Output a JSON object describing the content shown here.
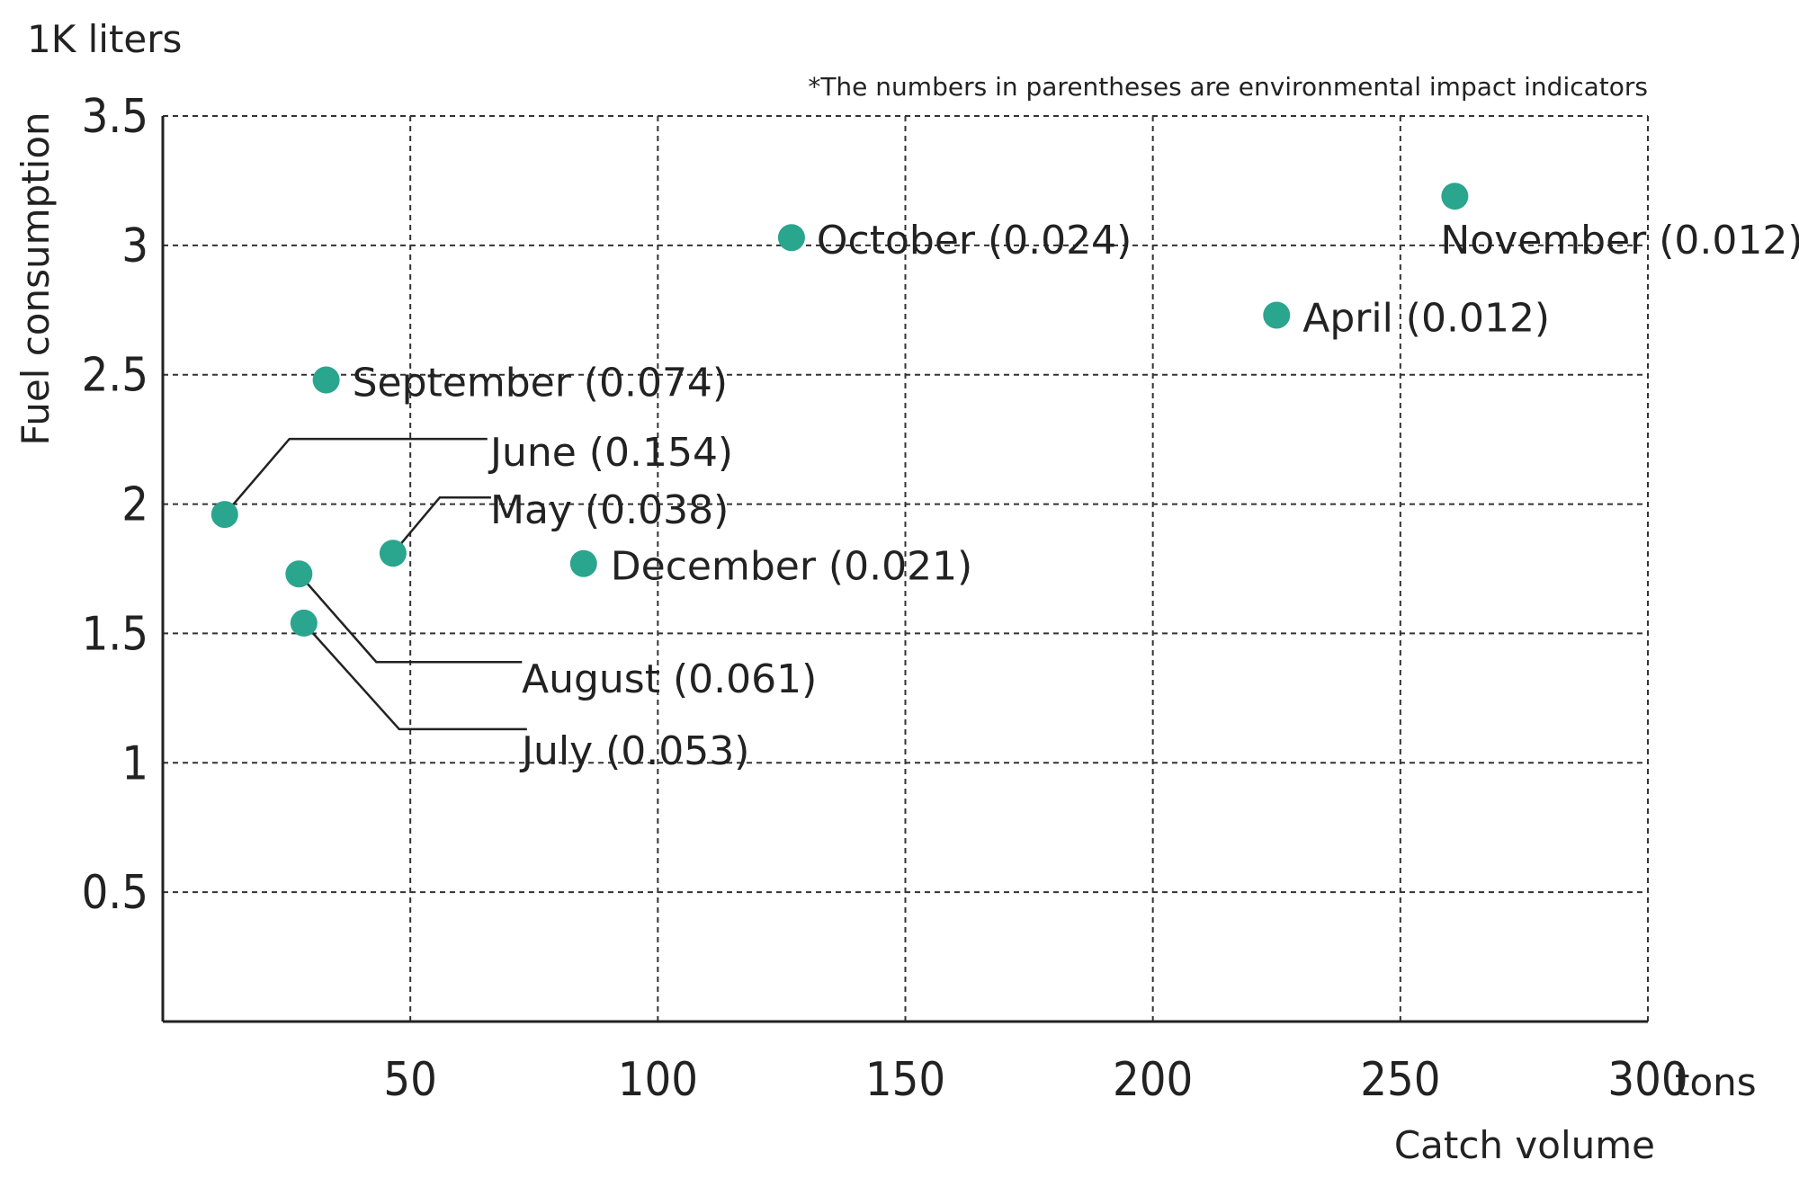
{
  "chart_data": {
    "type": "scatter",
    "note": "*The numbers in parentheses are environmental impact indicators",
    "y_unit": "1K liters",
    "ylabel": "Fuel consumption",
    "x_unit": "tons",
    "xlabel": "Catch volume",
    "xlim": [
      0,
      300
    ],
    "ylim": [
      0,
      3.5
    ],
    "x_ticks": [
      50,
      100,
      150,
      200,
      250,
      300
    ],
    "x_tick_labels": [
      "50",
      "100",
      "150",
      "200",
      "250",
      "300"
    ],
    "y_ticks": [
      0.5,
      1,
      1.5,
      2,
      2.5,
      3,
      3.5
    ],
    "y_tick_labels": [
      "0.5",
      "1",
      "1.5",
      "2",
      "2.5",
      "3",
      "3.5"
    ],
    "grid": true,
    "point_color": "#2aa58e",
    "points": [
      {
        "label": "October (0.024)",
        "x": 127,
        "y": 3.03
      },
      {
        "label": "November (0.012)",
        "x": 261,
        "y": 3.19
      },
      {
        "label": "April (0.012)",
        "x": 225,
        "y": 2.73
      },
      {
        "label": "September (0.074)",
        "x": 33,
        "y": 2.48
      },
      {
        "label": "June (0.154)",
        "x": 12.5,
        "y": 1.96
      },
      {
        "label": "May (0.038)",
        "x": 46.5,
        "y": 1.81
      },
      {
        "label": "December (0.021)",
        "x": 85,
        "y": 1.77
      },
      {
        "label": "August (0.061)",
        "x": 27.5,
        "y": 1.73
      },
      {
        "label": "July (0.053)",
        "x": 28.5,
        "y": 1.54
      }
    ]
  }
}
